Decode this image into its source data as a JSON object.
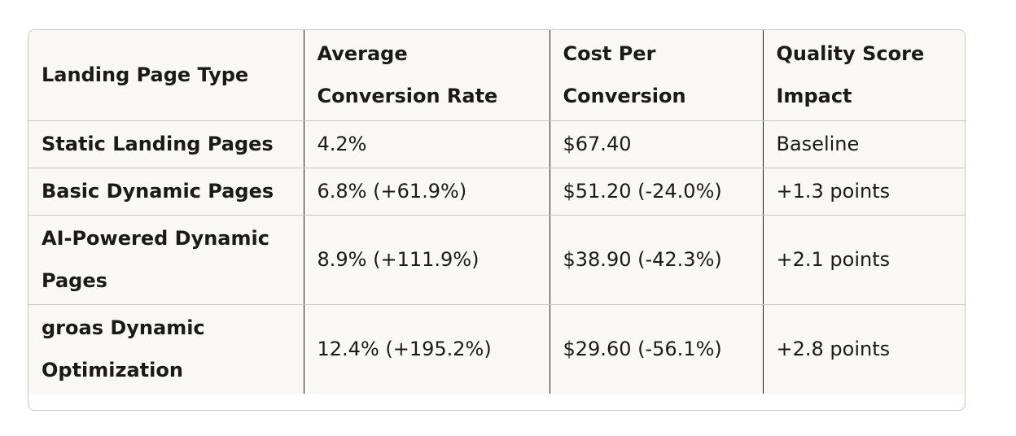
{
  "table": {
    "headers": [
      "Landing Page Type",
      "Average Conversion Rate",
      "Cost Per Conversion",
      "Quality Score Impact"
    ],
    "rows": [
      [
        "Static Landing Pages",
        "4.2%",
        "$67.40",
        "Baseline"
      ],
      [
        "Basic Dynamic Pages",
        "6.8% (+61.9%)",
        "$51.20 (-24.0%)",
        "+1.3 points"
      ],
      [
        "AI-Powered Dynamic Pages",
        "8.9% (+111.9%)",
        "$38.90 (-42.3%)",
        "+2.1 points"
      ],
      [
        "groas Dynamic Optimization",
        "12.4% (+195.2%)",
        "$29.60 (-56.1%)",
        "+2.8 points"
      ]
    ]
  }
}
